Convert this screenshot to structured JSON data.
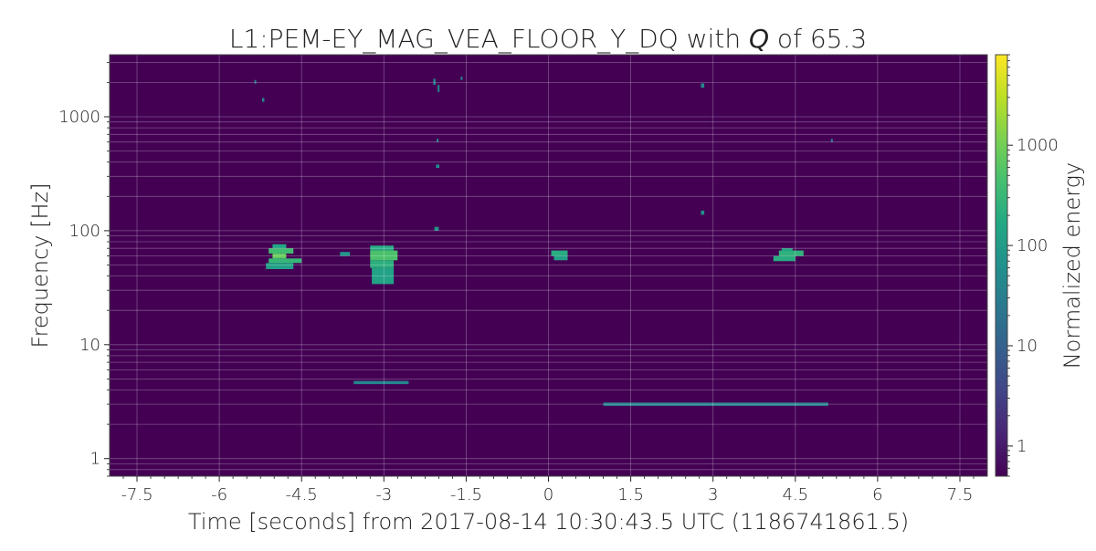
{
  "chart_data": {
    "type": "heatmap",
    "title_prefix": "L1:PEM-EY_MAG_VEA_FLOOR_Y_DQ with ",
    "title_q": "Q",
    "title_suffix": " of 65.3",
    "xlabel": "Time [seconds] from 2017-08-14 10:30:43.5 UTC (1186741861.5)",
    "ylabel": "Frequency [Hz]",
    "colorbar_label": "Normalized energy",
    "xlim": [
      -8.0,
      8.0
    ],
    "ylim": [
      0.7,
      3500
    ],
    "y_scale": "log",
    "grid": true,
    "colormap": "viridis",
    "background_color": "#440154",
    "x_ticks": [
      {
        "value": -7.5,
        "label": "-7.5"
      },
      {
        "value": -6,
        "label": "-6"
      },
      {
        "value": -4.5,
        "label": "-4.5"
      },
      {
        "value": -3,
        "label": "-3"
      },
      {
        "value": -1.5,
        "label": "-1.5"
      },
      {
        "value": 0,
        "label": "0"
      },
      {
        "value": 1.5,
        "label": "1.5"
      },
      {
        "value": 3,
        "label": "3"
      },
      {
        "value": 4.5,
        "label": "4.5"
      },
      {
        "value": 6,
        "label": "6"
      },
      {
        "value": 7.5,
        "label": "7.5"
      }
    ],
    "y_ticks": [
      {
        "value": 1,
        "label": "1"
      },
      {
        "value": 10,
        "label": "10"
      },
      {
        "value": 100,
        "label": "100"
      },
      {
        "value": 1000,
        "label": "1000"
      }
    ],
    "colorbar": {
      "range": [
        0.5,
        8000
      ],
      "scale": "log",
      "ticks": [
        {
          "value": 1,
          "label": "1"
        },
        {
          "value": 10,
          "label": "10"
        },
        {
          "value": 100,
          "label": "100"
        },
        {
          "value": 1000,
          "label": "1000"
        }
      ]
    },
    "tiles": [
      {
        "t0": -5.03,
        "t1": -4.78,
        "f0": 70,
        "f1": 76,
        "energy": 150
      },
      {
        "t0": -5.1,
        "t1": -4.65,
        "f0": 63,
        "f1": 70,
        "energy": 400
      },
      {
        "t0": -5.03,
        "t1": -4.78,
        "f0": 57,
        "f1": 63,
        "energy": 800
      },
      {
        "t0": -5.1,
        "t1": -4.5,
        "f0": 52,
        "f1": 57,
        "energy": 300
      },
      {
        "t0": -5.15,
        "t1": -4.65,
        "f0": 46,
        "f1": 52,
        "energy": 120
      },
      {
        "t0": -3.8,
        "t1": -3.62,
        "f0": 60,
        "f1": 65,
        "energy": 80
      },
      {
        "t0": -3.25,
        "t1": -2.82,
        "f0": 67,
        "f1": 74,
        "energy": 180
      },
      {
        "t0": -3.25,
        "t1": -2.75,
        "f0": 55,
        "f1": 67,
        "energy": 500
      },
      {
        "t0": -3.25,
        "t1": -2.82,
        "f0": 47,
        "f1": 55,
        "energy": 220
      },
      {
        "t0": -3.22,
        "t1": -2.82,
        "f0": 34,
        "f1": 47,
        "energy": 130
      },
      {
        "t0": -2.08,
        "t1": -2.0,
        "f0": 100,
        "f1": 108,
        "energy": 70
      },
      {
        "t0": -2.05,
        "t1": -1.99,
        "f0": 355,
        "f1": 380,
        "energy": 60
      },
      {
        "t0": -2.04,
        "t1": -2.01,
        "f0": 600,
        "f1": 640,
        "energy": 40
      },
      {
        "t0": -2.1,
        "t1": -2.06,
        "f0": 1900,
        "f1": 2150,
        "energy": 40
      },
      {
        "t0": -2.02,
        "t1": -2.0,
        "f0": 1650,
        "f1": 1900,
        "energy": 40
      },
      {
        "t0": -1.6,
        "t1": -1.57,
        "f0": 2100,
        "f1": 2250,
        "energy": 30
      },
      {
        "t0": -5.36,
        "t1": -5.33,
        "f0": 1950,
        "f1": 2100,
        "energy": 30
      },
      {
        "t0": -5.22,
        "t1": -5.18,
        "f0": 1350,
        "f1": 1460,
        "energy": 40
      },
      {
        "t0": 0.05,
        "t1": 0.35,
        "f0": 60,
        "f1": 67,
        "energy": 200
      },
      {
        "t0": 0.1,
        "t1": 0.35,
        "f0": 55,
        "f1": 60,
        "energy": 120
      },
      {
        "t0": 2.78,
        "t1": 2.84,
        "f0": 1800,
        "f1": 1960,
        "energy": 50
      },
      {
        "t0": 2.78,
        "t1": 2.84,
        "f0": 138,
        "f1": 150,
        "energy": 60
      },
      {
        "t0": 4.2,
        "t1": 4.65,
        "f0": 60,
        "f1": 67,
        "energy": 250
      },
      {
        "t0": 4.25,
        "t1": 4.45,
        "f0": 66,
        "f1": 70,
        "energy": 150
      },
      {
        "t0": 4.1,
        "t1": 4.5,
        "f0": 54,
        "f1": 60,
        "energy": 200
      },
      {
        "t0": 5.15,
        "t1": 5.18,
        "f0": 600,
        "f1": 640,
        "energy": 30
      },
      {
        "t0": -3.55,
        "t1": -2.55,
        "f0": 4.5,
        "f1": 4.8,
        "energy": 40
      },
      {
        "t0": 1.0,
        "t1": 5.1,
        "f0": 2.9,
        "f1": 3.1,
        "energy": 35
      }
    ]
  }
}
